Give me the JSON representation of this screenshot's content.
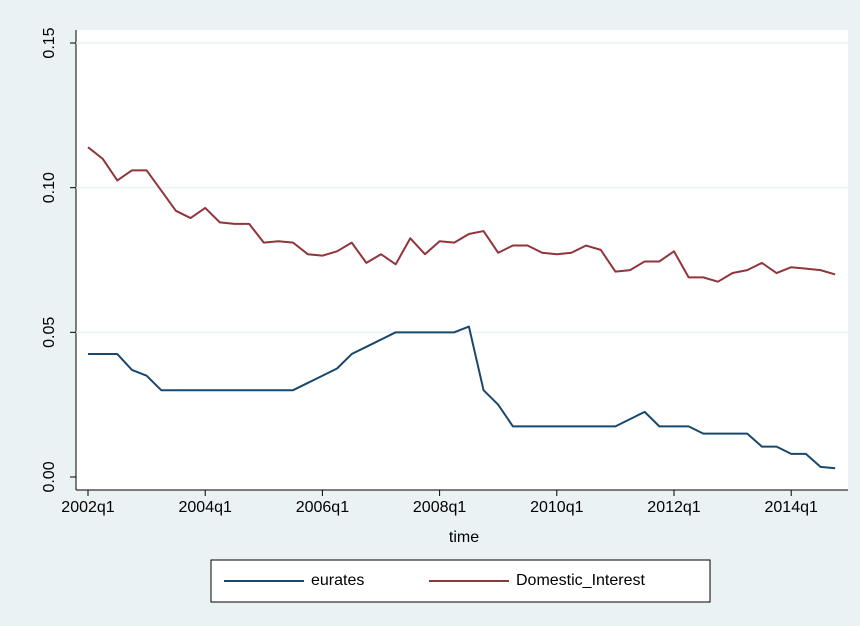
{
  "chart_data": {
    "type": "line",
    "x_label": "time",
    "categories": [
      "2002q1",
      null,
      null,
      null,
      null,
      null,
      null,
      null,
      "2004q1",
      null,
      null,
      null,
      null,
      null,
      null,
      null,
      "2006q1",
      null,
      null,
      null,
      null,
      null,
      null,
      null,
      "2008q1",
      null,
      null,
      null,
      null,
      null,
      null,
      null,
      "2010q1",
      null,
      null,
      null,
      null,
      null,
      null,
      null,
      "2012q1",
      null,
      null,
      null,
      null,
      null,
      null,
      null,
      "2014q1",
      null,
      null,
      null
    ],
    "series": [
      {
        "name": "eurates",
        "color": "#1a476f",
        "values": [
          0.0425,
          0.0425,
          0.0425,
          0.037,
          0.035,
          0.03,
          0.03,
          0.03,
          0.03,
          0.03,
          0.03,
          0.03,
          0.03,
          0.03,
          0.03,
          0.0325,
          0.035,
          0.0375,
          0.0425,
          0.045,
          0.0475,
          0.05,
          0.05,
          0.05,
          0.05,
          0.05,
          0.052,
          0.03,
          0.025,
          0.0175,
          0.0175,
          0.0175,
          0.0175,
          0.0175,
          0.0175,
          0.0175,
          0.0175,
          0.02,
          0.0225,
          0.0175,
          0.0175,
          0.0175,
          0.015,
          0.015,
          0.015,
          0.015,
          0.0105,
          0.0105,
          0.008,
          0.008,
          0.0035,
          0.003
        ]
      },
      {
        "name": "Domestic_Interest",
        "color": "#90353b",
        "values": [
          0.114,
          0.11,
          0.1025,
          0.106,
          0.106,
          0.099,
          0.092,
          0.0895,
          0.093,
          0.088,
          0.0875,
          0.0875,
          0.081,
          0.0815,
          0.081,
          0.077,
          0.0765,
          0.078,
          0.081,
          0.074,
          0.077,
          0.0735,
          0.0825,
          0.077,
          0.0815,
          0.081,
          0.084,
          0.085,
          0.0775,
          0.08,
          0.08,
          0.0775,
          0.077,
          0.0775,
          0.08,
          0.0785,
          0.071,
          0.0715,
          0.0745,
          0.0745,
          0.078,
          0.069,
          0.069,
          0.0675,
          0.0705,
          0.0715,
          0.074,
          0.0705,
          0.0725,
          0.072,
          0.0715,
          0.07
        ]
      }
    ],
    "ylim": [
      -0.0045,
      0.1545
    ],
    "yticks": [
      {
        "value": 0,
        "label": "0.00"
      },
      {
        "value": 0.05,
        "label": "0.05"
      },
      {
        "value": 0.1,
        "label": "0.10"
      },
      {
        "value": 0.15,
        "label": "0.15"
      }
    ],
    "grid": true,
    "legend": "bottom"
  }
}
